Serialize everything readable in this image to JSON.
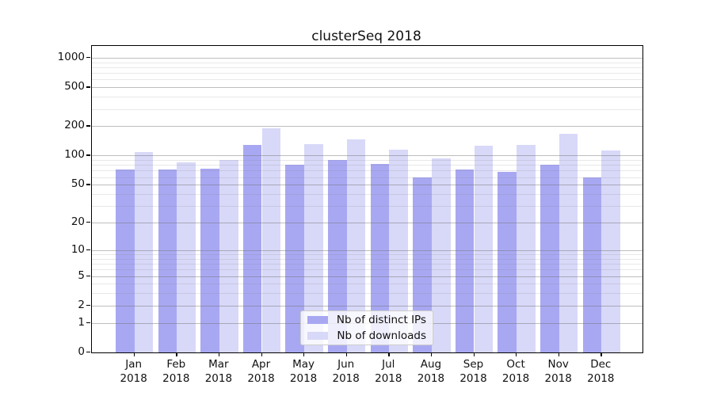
{
  "title": "clusterSeq 2018",
  "colors": {
    "ips_bar": "#a8a8f2",
    "downloads_bar": "#d8d8f8",
    "axis": "#000000",
    "grid_major": "rgba(110,110,110,0.45)",
    "grid_minor": "rgba(128,128,128,0.18)"
  },
  "legend": {
    "items": [
      {
        "label": "Nb of distinct IPs",
        "color_key": "ips_bar"
      },
      {
        "label": "Nb of downloads",
        "color_key": "downloads_bar"
      }
    ]
  },
  "chart_data": {
    "type": "bar",
    "title": "clusterSeq 2018",
    "xlabel": "",
    "ylabel": "",
    "scale": "log1p",
    "grid": true,
    "legend_position": "lower center",
    "year": "2018",
    "categories": [
      "Jan",
      "Feb",
      "Mar",
      "Apr",
      "May",
      "Jun",
      "Jul",
      "Aug",
      "Sep",
      "Oct",
      "Nov",
      "Dec"
    ],
    "series": [
      {
        "name": "Nb of distinct IPs",
        "values": [
          72,
          72,
          74,
          128,
          81,
          90,
          82,
          60,
          72,
          68,
          81,
          60
        ]
      },
      {
        "name": "Nb of downloads",
        "values": [
          108,
          85,
          91,
          190,
          130,
          147,
          115,
          93,
          126,
          128,
          166,
          113
        ]
      }
    ],
    "yticks": [
      0,
      1,
      2,
      5,
      10,
      20,
      50,
      100,
      200,
      500,
      1000
    ],
    "minor_yticks": [
      3,
      4,
      6,
      7,
      8,
      9,
      30,
      40,
      60,
      70,
      80,
      90,
      300,
      400,
      600,
      700,
      800,
      900
    ],
    "ylim": [
      0,
      1330
    ]
  }
}
